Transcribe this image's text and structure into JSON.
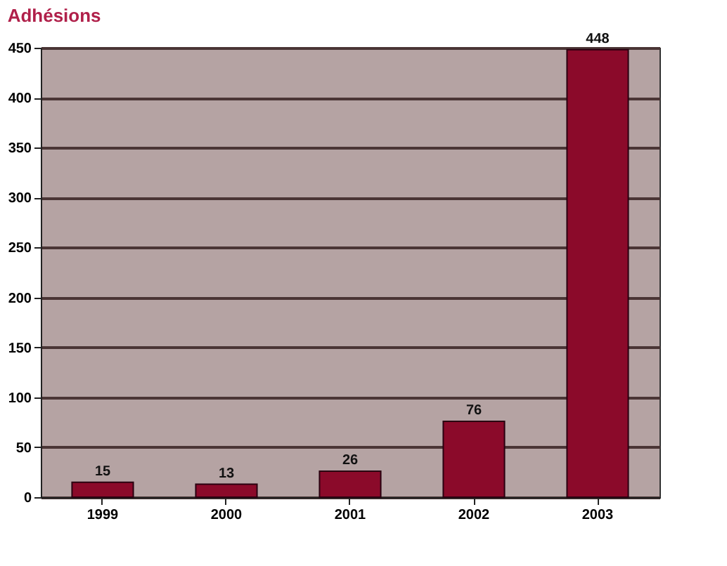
{
  "chart_data": {
    "type": "bar",
    "title": "Adhésions",
    "categories": [
      "1999",
      "2000",
      "2001",
      "2002",
      "2003"
    ],
    "values": [
      15,
      13,
      26,
      76,
      448
    ],
    "color": "#8b0a2a",
    "ylim": [
      0,
      450
    ],
    "yticks": [
      0,
      50,
      100,
      150,
      200,
      250,
      300,
      350,
      400,
      450
    ],
    "grid": "y",
    "data_labels": true
  }
}
